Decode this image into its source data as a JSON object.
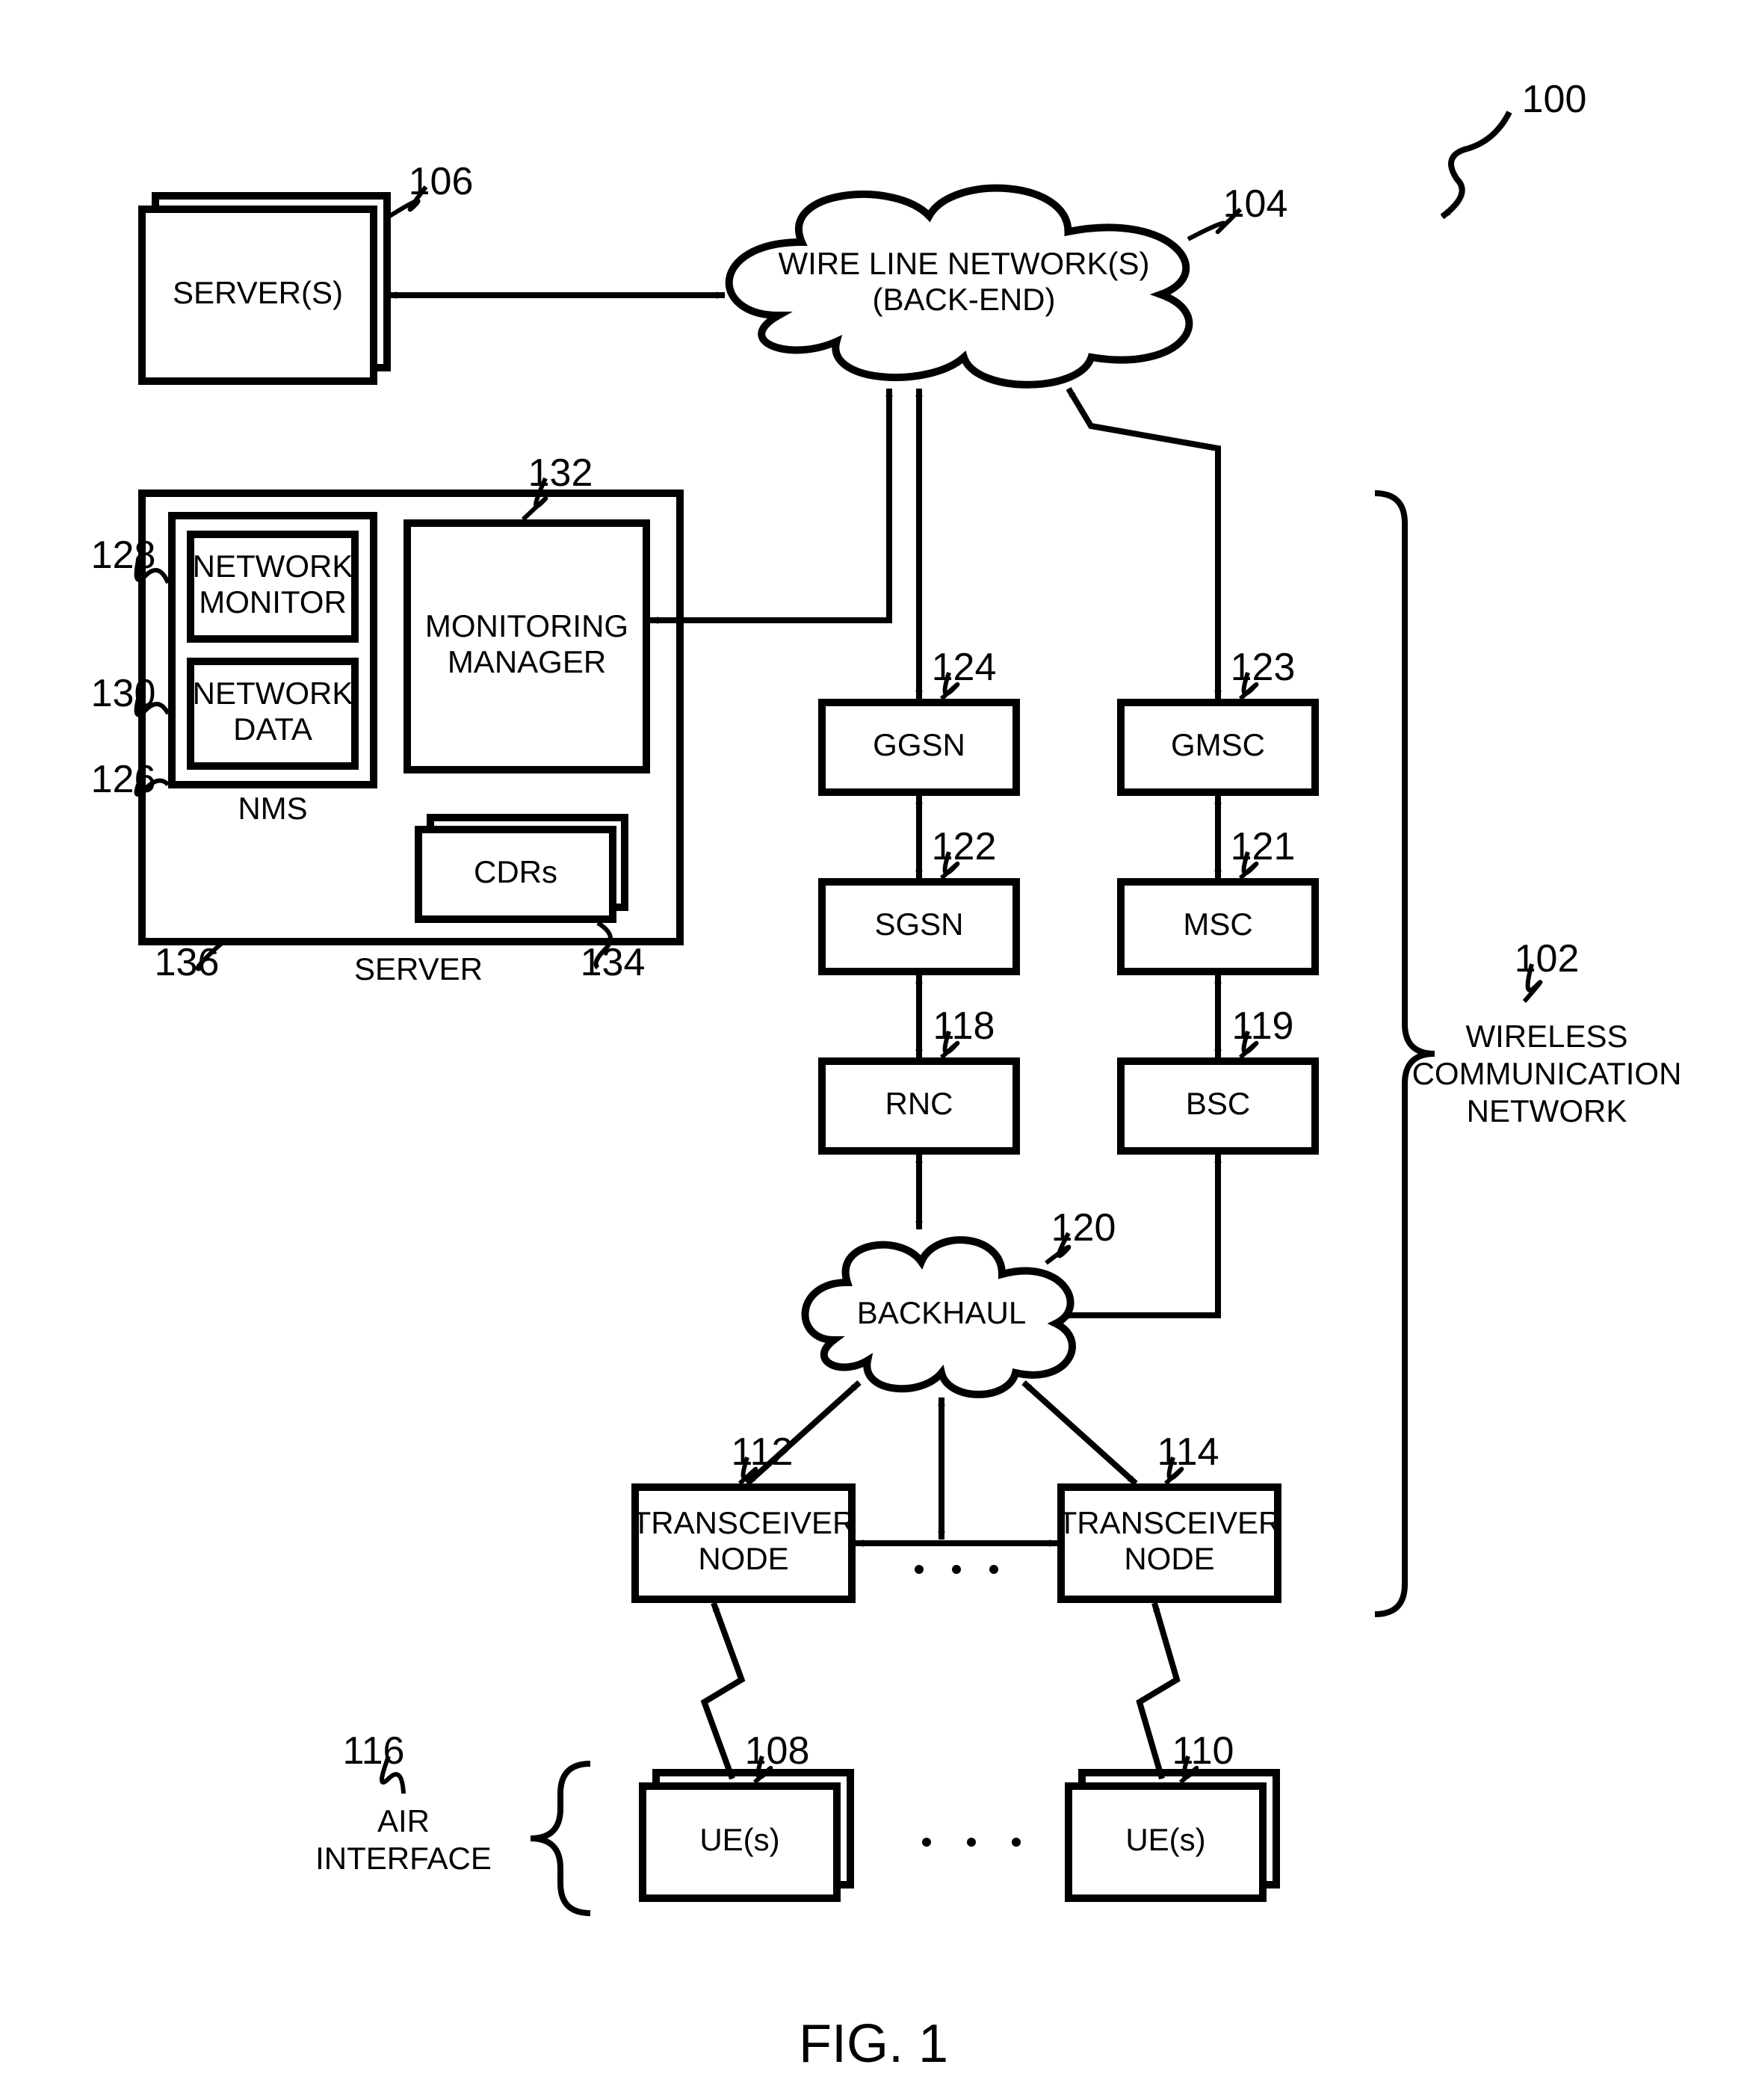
{
  "figure_label": "FIG. 1",
  "refs": {
    "r100": "100",
    "r102": "102",
    "r104": "104",
    "r106": "106",
    "r108": "108",
    "r110": "110",
    "r112": "112",
    "r114": "114",
    "r116": "116",
    "r118": "118",
    "r119": "119",
    "r120": "120",
    "r121": "121",
    "r122": "122",
    "r123": "123",
    "r124": "124",
    "r126": "126",
    "r128": "128",
    "r130": "130",
    "r132": "132",
    "r134": "134",
    "r136": "136"
  },
  "labels": {
    "servers": "SERVER(S)",
    "wireline_l1": "WIRE LINE NETWORK(S)",
    "wireline_l2": "(BACK-END)",
    "network_monitor_l1": "NETWORK",
    "network_monitor_l2": "MONITOR",
    "network_data_l1": "NETWORK",
    "network_data_l2": "DATA",
    "nms": "NMS",
    "monitoring_l1": "MONITORING",
    "monitoring_l2": "MANAGER",
    "cdrs": "CDRs",
    "server": "SERVER",
    "ggsn": "GGSN",
    "sgsn": "SGSN",
    "rnc": "RNC",
    "gmsc": "GMSC",
    "msc": "MSC",
    "bsc": "BSC",
    "backhaul": "BACKHAUL",
    "transceiver_l1": "TRANSCEIVER",
    "transceiver_l2": "NODE",
    "ue": "UE(s)",
    "air_l1": "AIR",
    "air_l2": "INTERFACE",
    "wireless_l1": "WIRELESS",
    "wireless_l2": "COMMUNICATION",
    "wireless_l3": "NETWORK"
  },
  "style": {
    "viewbox_w": 2338,
    "viewbox_h": 2810,
    "stroke": "#000000",
    "stroke_width": 10,
    "stroke_width_thin": 8,
    "fill": "#ffffff",
    "text_color": "#000000",
    "box_font_size": 42,
    "ref_font_size": 52,
    "fig_font_size": 72,
    "arrow_size": 24
  }
}
